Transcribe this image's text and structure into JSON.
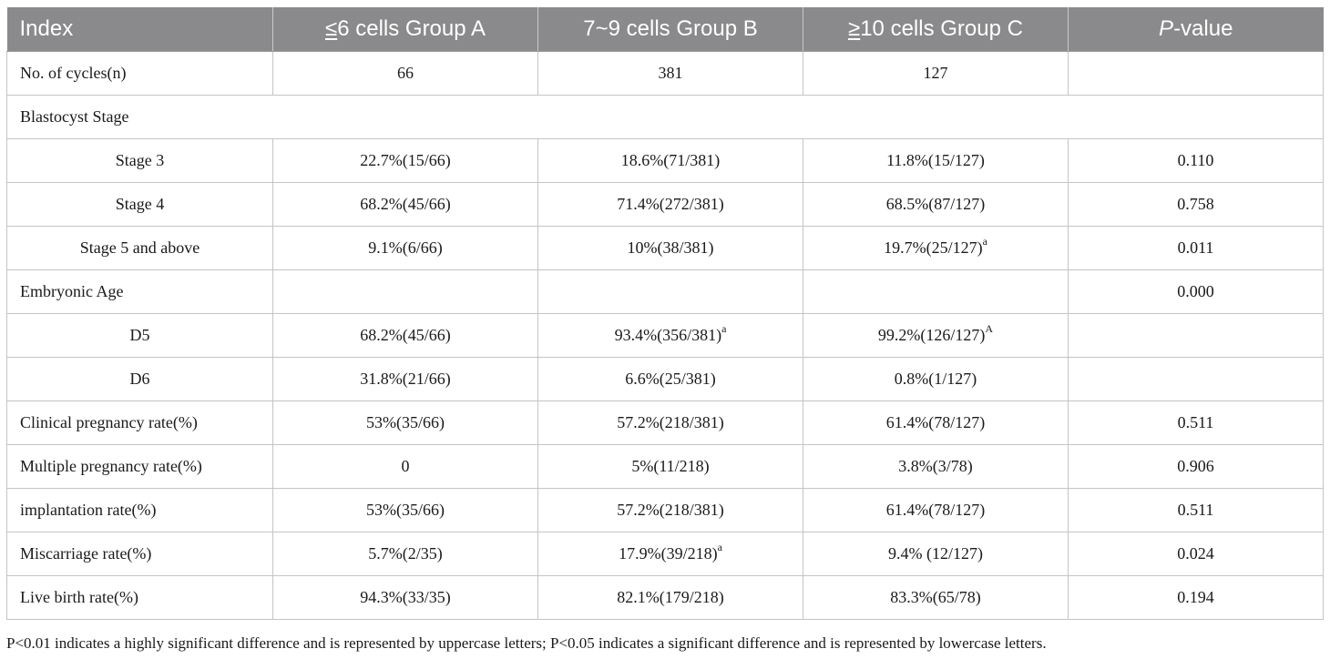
{
  "header": {
    "index": "Index",
    "group_a_prefix": "≤",
    "group_a": "6 cells Group A",
    "group_b": "7~9 cells Group B",
    "group_c_prefix": "≥",
    "group_c": "10 cells Group C",
    "p_italic": "P",
    "p_rest": "-value"
  },
  "rows": [
    {
      "label": "No. of cycles(n)",
      "a": "66",
      "b": "381",
      "c": "127",
      "p": ""
    },
    {
      "label": "Blastocyst Stage"
    },
    {
      "label": "Stage 3",
      "a": "22.7%(15/66)",
      "b": "18.6%(71/381)",
      "c": "11.8%(15/127)",
      "p": "0.110"
    },
    {
      "label": "Stage 4",
      "a": "68.2%(45/66)",
      "b": "71.4%(272/381)",
      "c": "68.5%(87/127)",
      "p": "0.758"
    },
    {
      "label": "Stage 5 and above",
      "a": "9.1%(6/66)",
      "b": "10%(38/381)",
      "c": "19.7%(25/127)",
      "c_sup": "a",
      "p": "0.011"
    },
    {
      "label": "Embryonic Age",
      "a": "",
      "b": "",
      "c": "",
      "p": "0.000"
    },
    {
      "label": "D5",
      "a": "68.2%(45/66)",
      "b": "93.4%(356/381)",
      "b_sup": "a",
      "c": "99.2%(126/127)",
      "c_sup": "A",
      "p": ""
    },
    {
      "label": "D6",
      "a": "31.8%(21/66)",
      "b": "6.6%(25/381)",
      "c": "0.8%(1/127)",
      "p": ""
    },
    {
      "label": "Clinical pregnancy rate(%)",
      "a": "53%(35/66)",
      "b": "57.2%(218/381)",
      "c": "61.4%(78/127)",
      "p": "0.511"
    },
    {
      "label": "Multiple pregnancy rate(%)",
      "a": "0",
      "b": "5%(11/218)",
      "c": "3.8%(3/78)",
      "p": "0.906"
    },
    {
      "label": "implantation rate(%)",
      "a": "53%(35/66)",
      "b": "57.2%(218/381)",
      "c": "61.4%(78/127)",
      "p": "0.511"
    },
    {
      "label": "Miscarriage rate(%)",
      "a": "5.7%(2/35)",
      "b": "17.9%(39/218)",
      "b_sup": "a",
      "c": "9.4% (12/127)",
      "p": "0.024"
    },
    {
      "label": "Live birth rate(%)",
      "a": "94.3%(33/35)",
      "b": "82.1%(179/218)",
      "c": "83.3%(65/78)",
      "p": "0.194"
    }
  ],
  "footnote": "P<0.01 indicates a highly significant difference and is represented by uppercase letters; P<0.05 indicates a significant difference and is represented by lowercase letters."
}
